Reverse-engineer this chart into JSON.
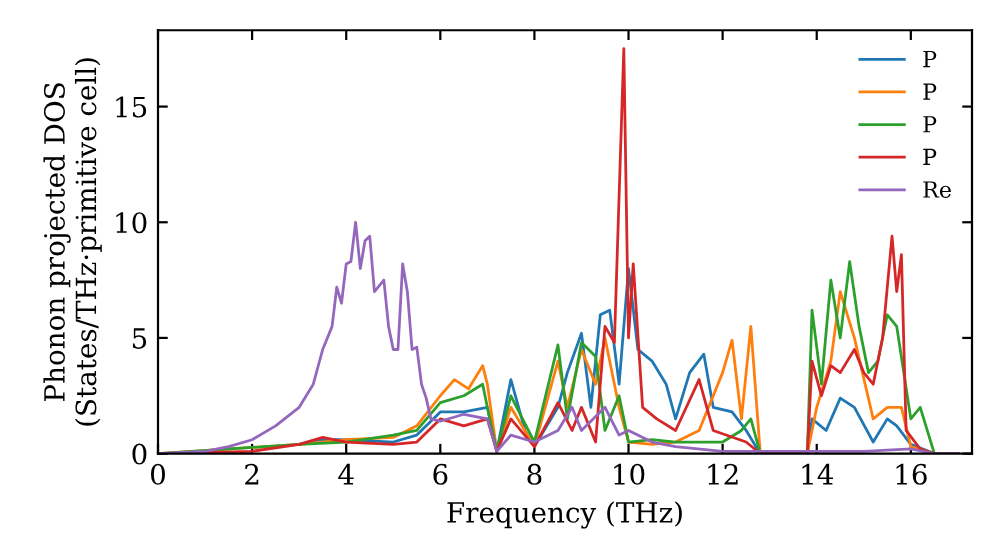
{
  "chart_data": {
    "type": "line",
    "xlabel": "Frequency (THz)",
    "ylabel": "Phonon projected DOS\n(States/THz·primitive cell)",
    "xlim": [
      0,
      17.3
    ],
    "ylim": [
      0,
      18.3
    ],
    "xticks": [
      0,
      2,
      4,
      6,
      8,
      10,
      12,
      14,
      16
    ],
    "yticks": [
      0,
      5,
      10,
      15
    ],
    "legend": "top right",
    "grid": false,
    "series": [
      {
        "name": "P",
        "color": "#1f77b4",
        "x": [
          3,
          3.5,
          4,
          5,
          5.5,
          6,
          6.5,
          7,
          7.2,
          7.5,
          7.8,
          8,
          8.5,
          8.7,
          9,
          9.2,
          9.4,
          9.6,
          9.8,
          10,
          10.2,
          10.5,
          10.8,
          11,
          11.3,
          11.6,
          11.8,
          12.2,
          12.5,
          12.8,
          13.8,
          13.9,
          14.2,
          14.5,
          14.8,
          15.2,
          15.5,
          15.7,
          16,
          16.5,
          17
        ],
        "values": [
          0.4,
          0.6,
          0.6,
          0.5,
          0.8,
          1.8,
          1.8,
          2.0,
          0.1,
          3.2,
          1.0,
          0.3,
          2.0,
          3.5,
          5.2,
          2.0,
          6.0,
          6.2,
          3.0,
          8.0,
          4.5,
          4.0,
          3.0,
          1.5,
          3.5,
          4.3,
          2.0,
          1.8,
          1.0,
          0,
          0,
          1.5,
          1.0,
          2.4,
          2.0,
          0.5,
          1.5,
          1.2,
          0.4,
          0,
          0
        ]
      },
      {
        "name": "P",
        "color": "#ff7f0e",
        "x": [
          0,
          3,
          4,
          5,
          5.5,
          6,
          6.3,
          6.6,
          6.9,
          7,
          7.2,
          7.5,
          8,
          8.5,
          8.7,
          9,
          9.3,
          9.5,
          9.8,
          10,
          10.5,
          11,
          11.5,
          12,
          12.2,
          12.4,
          12.6,
          12.8,
          13.8,
          14,
          14.3,
          14.5,
          14.8,
          15.2,
          15.5,
          15.8,
          16,
          16.5,
          17
        ],
        "values": [
          0,
          0.4,
          0.6,
          0.7,
          1.2,
          2.5,
          3.2,
          2.8,
          3.8,
          3.0,
          0.1,
          2.0,
          0.3,
          4.0,
          2.0,
          4.5,
          3.0,
          5.0,
          2.0,
          0.5,
          0.4,
          0.5,
          1.0,
          3.5,
          4.9,
          1.5,
          5.5,
          0,
          0,
          2.0,
          4.0,
          7.0,
          5.0,
          1.5,
          2.0,
          2.0,
          0.3,
          0,
          0
        ]
      },
      {
        "name": "P",
        "color": "#2ca02c",
        "x": [
          0,
          3,
          4,
          5,
          5.5,
          6,
          6.5,
          6.9,
          7,
          7.2,
          7.5,
          8,
          8.5,
          8.7,
          9,
          9.3,
          9.5,
          9.8,
          10,
          10.5,
          11,
          11.5,
          12,
          12.4,
          12.6,
          12.8,
          13.8,
          13.9,
          14.1,
          14.3,
          14.5,
          14.7,
          14.9,
          15.1,
          15.3,
          15.5,
          15.7,
          16,
          16.2,
          16.5,
          17
        ],
        "values": [
          0,
          0.4,
          0.5,
          0.8,
          1.0,
          2.2,
          2.5,
          3.0,
          2.0,
          0.1,
          2.5,
          0.5,
          4.7,
          1.5,
          4.8,
          4.2,
          1.0,
          2.5,
          0.5,
          0.6,
          0.5,
          0.5,
          0.5,
          1.0,
          1.5,
          0,
          0,
          6.2,
          3.0,
          7.5,
          5.0,
          8.3,
          5.5,
          3.5,
          4.0,
          6.0,
          5.5,
          1.5,
          2.0,
          0,
          0
        ]
      },
      {
        "name": "P",
        "color": "#d62728",
        "x": [
          0,
          2,
          3,
          3.5,
          4,
          5,
          5.5,
          6,
          6.5,
          7,
          7.2,
          7.5,
          8,
          8.5,
          8.8,
          9,
          9.3,
          9.5,
          9.7,
          9.9,
          10,
          10.1,
          10.3,
          10.6,
          11,
          11.5,
          11.8,
          12.5,
          12.8,
          13.8,
          13.9,
          14.1,
          14.3,
          14.5,
          14.8,
          15,
          15.2,
          15.4,
          15.6,
          15.7,
          15.8,
          15.9,
          16.2,
          16.5,
          17
        ],
        "values": [
          0,
          0.1,
          0.4,
          0.7,
          0.5,
          0.4,
          0.5,
          1.5,
          1.2,
          1.5,
          0.1,
          1.5,
          0.3,
          2.2,
          1.0,
          2.0,
          0.5,
          5.5,
          4.8,
          17.5,
          5.0,
          8.2,
          2.0,
          1.5,
          1.0,
          3.2,
          1.0,
          0.5,
          0,
          0,
          4.0,
          2.5,
          3.8,
          3.5,
          4.5,
          3.5,
          3.0,
          5.0,
          9.4,
          7.0,
          8.6,
          1.0,
          0.2,
          0,
          0
        ]
      },
      {
        "name": "Re",
        "color": "#9467bd",
        "x": [
          0,
          1,
          1.5,
          2,
          2.5,
          3,
          3.3,
          3.5,
          3.7,
          3.8,
          3.9,
          4,
          4.1,
          4.2,
          4.3,
          4.4,
          4.5,
          4.6,
          4.8,
          4.9,
          5,
          5.1,
          5.2,
          5.3,
          5.4,
          5.5,
          5.6,
          5.7,
          5.8,
          6,
          6.5,
          7,
          7.2,
          7.5,
          8,
          8.5,
          8.8,
          9,
          9.5,
          9.8,
          10,
          10.5,
          11,
          12,
          13,
          14,
          15,
          16,
          16.5,
          17
        ],
        "values": [
          0,
          0.1,
          0.3,
          0.6,
          1.2,
          2.0,
          3.0,
          4.5,
          5.5,
          7.2,
          6.5,
          8.2,
          8.3,
          10.0,
          8.0,
          9.2,
          9.4,
          7.0,
          7.5,
          5.5,
          4.5,
          4.5,
          8.2,
          7.0,
          4.5,
          4.6,
          3.0,
          2.4,
          1.5,
          1.4,
          1.7,
          1.5,
          0.1,
          0.8,
          0.5,
          1.0,
          2.0,
          1.0,
          2.0,
          0.8,
          1.0,
          0.5,
          0.3,
          0.1,
          0.1,
          0.1,
          0.1,
          0.2,
          0,
          0
        ]
      }
    ]
  }
}
